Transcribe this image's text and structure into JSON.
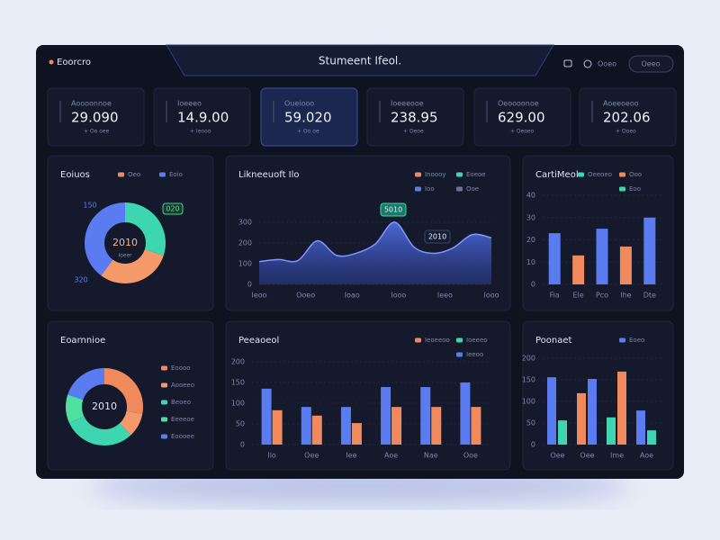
{
  "header": {
    "brand": "Eoorcro",
    "title": "Stumeent Ifeol.",
    "menu": "Ooeo",
    "button": "Oeeo"
  },
  "kpis": [
    {
      "label": "Aoooonnoe",
      "value": "29.090",
      "note": "+ Oo oee"
    },
    {
      "label": "Ioeeeo",
      "value": "14.9.00",
      "note": "+ Ieooo"
    },
    {
      "label": "Oueiooo",
      "value": "59.020",
      "note": "+ Oo oe"
    },
    {
      "label": "Ioeeeooe",
      "value": "238.95",
      "note": "+ Oeoe"
    },
    {
      "label": "Oeoooonoe",
      "value": "629.00",
      "note": "+ Oeoeo"
    },
    {
      "label": "Aoeeoeoo",
      "value": "202.06",
      "note": "+ Ooeo"
    }
  ],
  "widgets": [
    {
      "type": "donut",
      "title": "Eoiuos",
      "legend": [
        {
          "label": "Oeo",
          "color": "#f08a5d"
        },
        {
          "label": "Eoio",
          "color": "#5b7cf0"
        }
      ],
      "values": [
        30,
        30,
        40
      ],
      "colors": [
        "#3dd6b0",
        "#f49a6a",
        "#5b7cf0"
      ],
      "center": "2010",
      "center_sub": "Ioeer",
      "annotations": [
        "150",
        "020",
        "320"
      ]
    },
    {
      "type": "area",
      "title": "Likneeuoft Ilo",
      "legend": [
        {
          "label": "Inoooy",
          "color": "#f08a5d"
        },
        {
          "label": "Eoeoe",
          "color": "#3dd6b0"
        },
        {
          "label": "Ioo",
          "color": "#5b7cf0"
        },
        {
          "label": "Ooe",
          "color": "#6b7392"
        }
      ],
      "values": [
        110,
        120,
        115,
        210,
        140,
        150,
        195,
        300,
        180,
        150,
        175,
        240,
        225
      ],
      "color": "#5b7cf0",
      "xlabels": [
        "Ieoo",
        "Ooeo",
        "Ioao",
        "Iooo",
        "Ieeo",
        "Iooo"
      ],
      "ylim": [
        0,
        330
      ],
      "yticks": [
        0,
        100,
        200,
        300
      ],
      "annotations": [
        "5010",
        "2010"
      ]
    },
    {
      "type": "bar",
      "title": "CartiMeol",
      "legend": [
        {
          "label": "Oeeoeo",
          "color": "#3dd6b0"
        },
        {
          "label": "Ooo",
          "color": "#f08a5d"
        },
        {
          "label": "Eoo",
          "color": "#3dd6b0"
        }
      ],
      "categories": [
        "Fia",
        "Ele",
        "Pco",
        "Ihe",
        "Dte"
      ],
      "values": [
        23,
        13,
        25,
        17,
        30
      ],
      "colors": [
        "#5b7cf0",
        "#f08a5d",
        "#5b7cf0",
        "#f08a5d",
        "#5b7cf0"
      ],
      "ylim": [
        0,
        40
      ],
      "yticks": [
        0,
        10,
        20,
        30,
        40
      ]
    },
    {
      "type": "donut",
      "title": "Eoarnnioe",
      "legend": [
        {
          "label": "Eoooo",
          "color": "#f08a5d"
        },
        {
          "label": "Aooeeo",
          "color": "#f49a6a"
        },
        {
          "label": "Beoeo",
          "color": "#3dd6b0"
        },
        {
          "label": "Eeeeoe",
          "color": "#4fe0a0"
        },
        {
          "label": "Eoooee",
          "color": "#5b7cf0"
        }
      ],
      "values": [
        28,
        10,
        30,
        12,
        20
      ],
      "colors": [
        "#f08a5d",
        "#f49a6a",
        "#3dd6b0",
        "#4fe0a0",
        "#5b7cf0"
      ],
      "center": "2010"
    },
    {
      "type": "grouped",
      "title": "Peeaoeol",
      "legend": [
        {
          "label": "Ieoeeoo",
          "color": "#f08a5d"
        },
        {
          "label": "Ioeeeo",
          "color": "#3dd6b0"
        },
        {
          "label": "Ieeoo",
          "color": "#5b7cf0"
        }
      ],
      "categories": [
        "Ilo",
        "Oee",
        "Iee",
        "Aoe",
        "Nae",
        "Ooe"
      ],
      "series": [
        {
          "color": "#5b7cf0",
          "values": [
            135,
            91,
            91,
            139,
            139,
            150
          ]
        },
        {
          "color": "#f08a5d",
          "values": [
            83,
            70,
            52,
            91,
            91,
            91
          ]
        }
      ],
      "ylim": [
        0,
        200
      ],
      "yticks": [
        0,
        50,
        100,
        150,
        200
      ]
    },
    {
      "type": "pairs",
      "title": "Poonaet",
      "legend": [
        {
          "label": "Eoeo",
          "color": "#5b7cf0"
        }
      ],
      "categories": [
        "Oee",
        "Oee",
        "Ime",
        "Aoe"
      ],
      "values": [
        156,
        56,
        119,
        152,
        63,
        169,
        79,
        33
      ],
      "colors": [
        "#5b7cf0",
        "#3dd6b0",
        "#f08a5d",
        "#5b7cf0",
        "#3dd6b0",
        "#f08a5d",
        "#5b7cf0",
        "#3dd6b0"
      ],
      "ylim": [
        0,
        200
      ],
      "yticks": [
        0,
        50,
        100,
        150,
        200
      ]
    }
  ]
}
